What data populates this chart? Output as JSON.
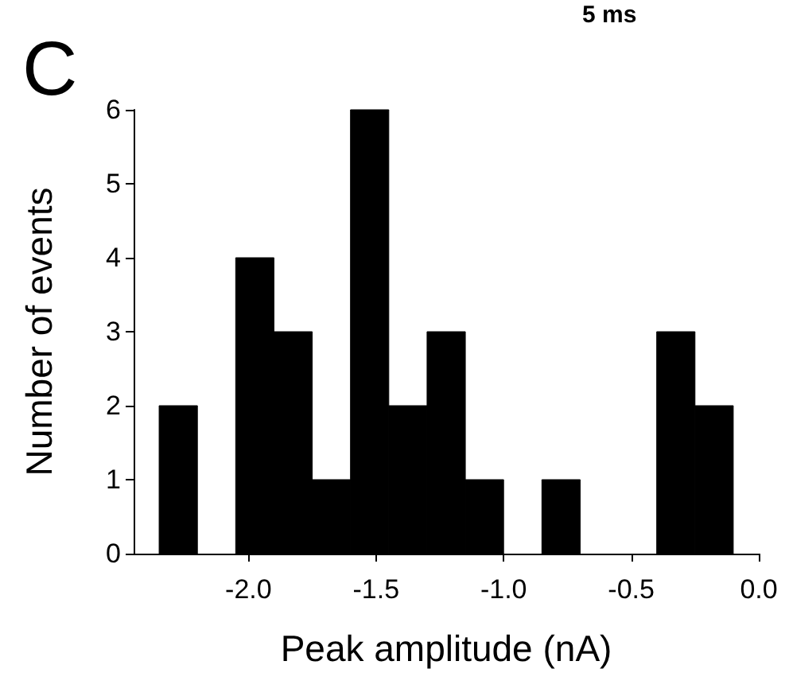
{
  "chart_data": {
    "type": "histogram",
    "title": "C",
    "xlabel": "Peak amplitude (nA)",
    "ylabel": "Number of events",
    "annotations": [
      "5 ms"
    ],
    "bins": [
      -2.35,
      -2.2,
      -2.05,
      -1.9,
      -1.75,
      -1.6,
      -1.45,
      -1.3,
      -1.15,
      -1.0,
      -0.85,
      -0.7,
      -0.55,
      -0.4,
      -0.25,
      -0.1
    ],
    "values": [
      2,
      0,
      4,
      3,
      1,
      6,
      2,
      3,
      1,
      0,
      1,
      0,
      0,
      3,
      2
    ],
    "color": "#000000",
    "xlim": [
      -2.45,
      0
    ],
    "xticks": [
      {
        "value": -2.0,
        "label": "-2.0"
      },
      {
        "value": -1.5,
        "label": "-1.5"
      },
      {
        "value": -1.0,
        "label": "-1.0"
      },
      {
        "value": -0.5,
        "label": "-0.5"
      },
      {
        "value": 0,
        "label": "0.0"
      }
    ],
    "ylim": [
      0,
      6
    ],
    "yticks": [
      0,
      1,
      2,
      3,
      4,
      5,
      6
    ],
    "grid": false
  }
}
